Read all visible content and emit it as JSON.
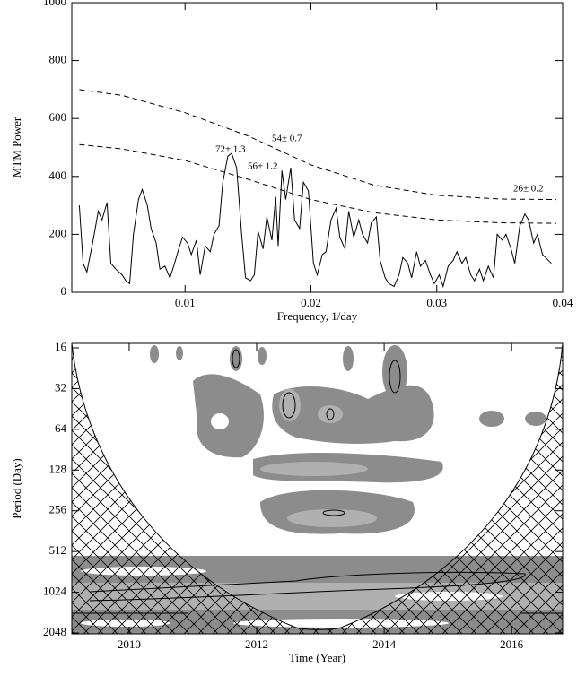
{
  "chart_data": [
    {
      "type": "line",
      "x_label": "Frequency, 1/day",
      "y_label": "MTM Power",
      "xlim": [
        0.001,
        0.04
      ],
      "ylim": [
        0,
        1000
      ],
      "xticks": [
        0.01,
        0.02,
        0.03,
        0.04
      ],
      "yticks": [
        0,
        200,
        400,
        600,
        800,
        1000
      ],
      "annotations": [
        "72± 1.3",
        "54± 0.7",
        "56± 1.2",
        "26± 0.2"
      ],
      "series": [
        {
          "color": "#000000",
          "style": "solid",
          "x": [
            0.0016,
            0.0019,
            0.0022,
            0.0027,
            0.0031,
            0.0034,
            0.0038,
            0.0041,
            0.0045,
            0.005,
            0.0053,
            0.0056,
            0.0059,
            0.0063,
            0.0066,
            0.007,
            0.0073,
            0.0077,
            0.008,
            0.0084,
            0.0088,
            0.0091,
            0.0095,
            0.0098,
            0.0102,
            0.0105,
            0.0109,
            0.0112,
            0.0116,
            0.012,
            0.0123,
            0.0127,
            0.013,
            0.0134,
            0.0137,
            0.0141,
            0.0145,
            0.0148,
            0.0152,
            0.0155,
            0.0158,
            0.0162,
            0.0165,
            0.0169,
            0.0172,
            0.0174,
            0.0177,
            0.018,
            0.0184,
            0.0187,
            0.0191,
            0.0194,
            0.0198,
            0.0202,
            0.0205,
            0.0209,
            0.0212,
            0.0216,
            0.022,
            0.0223,
            0.0227,
            0.023,
            0.0234,
            0.0238,
            0.0241,
            0.0245,
            0.0248,
            0.0252,
            0.0255,
            0.0259,
            0.0262,
            0.0266,
            0.027,
            0.0273,
            0.0277,
            0.028,
            0.0284,
            0.0287,
            0.0291,
            0.0295,
            0.0298,
            0.0302,
            0.0305,
            0.0309,
            0.0313,
            0.0316,
            0.032,
            0.0323,
            0.0327,
            0.033,
            0.0334,
            0.0337,
            0.0341,
            0.0345,
            0.0348,
            0.0352,
            0.0355,
            0.0359,
            0.0362,
            0.0366,
            0.037,
            0.0373,
            0.0377,
            0.038,
            0.0384,
            0.0391
          ],
          "values": [
            300,
            100,
            70,
            180,
            280,
            250,
            310,
            100,
            80,
            60,
            40,
            30,
            200,
            320,
            355,
            300,
            220,
            170,
            80,
            90,
            50,
            90,
            150,
            190,
            170,
            130,
            180,
            60,
            160,
            140,
            200,
            230,
            380,
            470,
            480,
            430,
            200,
            50,
            40,
            60,
            210,
            150,
            260,
            180,
            330,
            160,
            420,
            320,
            430,
            250,
            220,
            380,
            350,
            100,
            60,
            130,
            140,
            250,
            290,
            190,
            150,
            280,
            190,
            250,
            200,
            170,
            240,
            260,
            110,
            50,
            30,
            20,
            60,
            120,
            100,
            50,
            140,
            90,
            110,
            60,
            30,
            60,
            20,
            90,
            110,
            140,
            100,
            120,
            60,
            40,
            80,
            40,
            90,
            50,
            200,
            180,
            200,
            150,
            100,
            230,
            270,
            250,
            170,
            200,
            130,
            100
          ]
        },
        {
          "color": "#000000",
          "style": "dashed",
          "x": [
            0.0016,
            0.005,
            0.01,
            0.015,
            0.02,
            0.025,
            0.03,
            0.035,
            0.0395
          ],
          "values": [
            700,
            680,
            620,
            540,
            440,
            370,
            335,
            322,
            320
          ]
        },
        {
          "color": "#000000",
          "style": "dashed",
          "x": [
            0.0016,
            0.005,
            0.01,
            0.015,
            0.02,
            0.025,
            0.03,
            0.035,
            0.0395
          ],
          "values": [
            510,
            495,
            455,
            390,
            320,
            275,
            250,
            240,
            238
          ]
        }
      ]
    },
    {
      "type": "contour",
      "x_label": "Time (Year)",
      "y_label": "Period (Day)",
      "xlim": [
        2009.1,
        2016.8
      ],
      "ylim": [
        16,
        2048
      ],
      "y_log_base": 2,
      "y_reversed": true,
      "xticks": [
        2010,
        2012,
        2014,
        2016
      ],
      "yticks": [
        16,
        32,
        64,
        128,
        256,
        512,
        1024,
        2048
      ]
    }
  ]
}
